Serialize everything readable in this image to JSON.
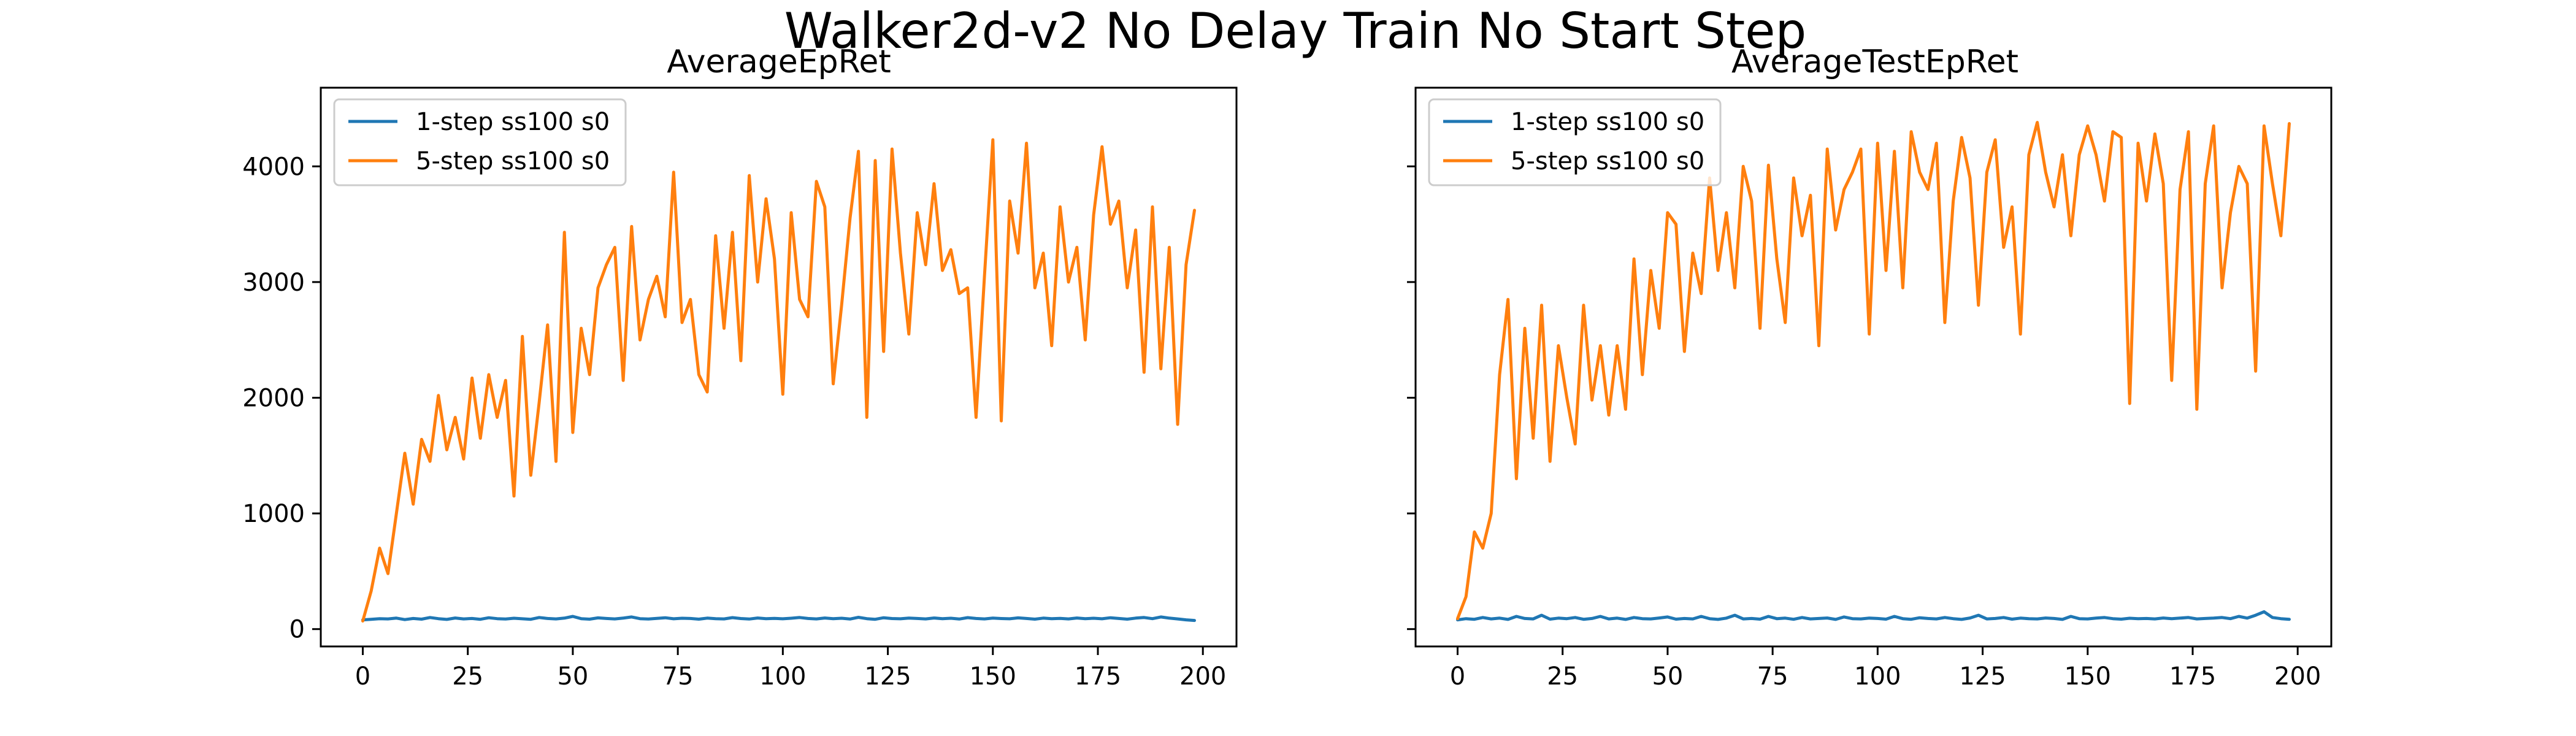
{
  "figure": {
    "title": "Walker2d-v2 No Delay Train No Start Step"
  },
  "colors": {
    "series_0": "#1f77b4",
    "series_1": "#ff7f0e"
  },
  "chart_data": [
    {
      "type": "line",
      "title": "AverageEpRet",
      "xlabel": "",
      "ylabel": "",
      "xlim": [
        -10,
        208
      ],
      "ylim": [
        -150,
        4680
      ],
      "xticks": [
        0,
        25,
        50,
        75,
        100,
        125,
        150,
        175,
        200
      ],
      "yticks": [
        0,
        1000,
        2000,
        3000,
        4000
      ],
      "show_yticklabels": true,
      "grid": false,
      "legend": "top-left",
      "series": [
        {
          "name": "1-step ss100 s0",
          "color": "#1f77b4",
          "x": [
            0,
            2,
            4,
            6,
            8,
            10,
            12,
            14,
            16,
            18,
            20,
            22,
            24,
            26,
            28,
            30,
            32,
            34,
            36,
            38,
            40,
            42,
            44,
            46,
            48,
            50,
            52,
            54,
            56,
            58,
            60,
            62,
            64,
            66,
            68,
            70,
            72,
            74,
            76,
            78,
            80,
            82,
            84,
            86,
            88,
            90,
            92,
            94,
            96,
            98,
            100,
            102,
            104,
            106,
            108,
            110,
            112,
            114,
            116,
            118,
            120,
            122,
            124,
            126,
            128,
            130,
            132,
            134,
            136,
            138,
            140,
            142,
            144,
            146,
            148,
            150,
            152,
            154,
            156,
            158,
            160,
            162,
            164,
            166,
            168,
            170,
            172,
            174,
            176,
            178,
            180,
            182,
            184,
            186,
            188,
            190,
            192,
            194,
            196,
            198
          ],
          "y": [
            80,
            85,
            90,
            88,
            95,
            82,
            92,
            86,
            100,
            90,
            84,
            96,
            88,
            92,
            85,
            98,
            90,
            87,
            94,
            89,
            85,
            100,
            92,
            88,
            95,
            110,
            90,
            86,
            97,
            92,
            88,
            95,
            105,
            90,
            87,
            93,
            98,
            89,
            94,
            92,
            86,
            95,
            90,
            88,
            99,
            91,
            87,
            96,
            90,
            93,
            89,
            94,
            100,
            92,
            88,
            96,
            90,
            94,
            87,
            102,
            90,
            85,
            98,
            91,
            89,
            95,
            92,
            88,
            96,
            90,
            94,
            87,
            99,
            92,
            88,
            95,
            91,
            89,
            97,
            92,
            86,
            95,
            90,
            93,
            88,
            96,
            90,
            94,
            89,
            98,
            92,
            86,
            95,
            100,
            90,
            105,
            95,
            88,
            80,
            75
          ]
        },
        {
          "name": "5-step ss100 s0",
          "color": "#ff7f0e",
          "x": [
            0,
            2,
            4,
            6,
            8,
            10,
            12,
            14,
            16,
            18,
            20,
            22,
            24,
            26,
            28,
            30,
            32,
            34,
            36,
            38,
            40,
            42,
            44,
            46,
            48,
            50,
            52,
            54,
            56,
            58,
            60,
            62,
            64,
            66,
            68,
            70,
            72,
            74,
            76,
            78,
            80,
            82,
            84,
            86,
            88,
            90,
            92,
            94,
            96,
            98,
            100,
            102,
            104,
            106,
            108,
            110,
            112,
            114,
            116,
            118,
            120,
            122,
            124,
            126,
            128,
            130,
            132,
            134,
            136,
            138,
            140,
            142,
            144,
            146,
            148,
            150,
            152,
            154,
            156,
            158,
            160,
            162,
            164,
            166,
            168,
            170,
            172,
            174,
            176,
            178,
            180,
            182,
            184,
            186,
            188,
            190,
            192,
            194,
            196,
            198
          ],
          "y": [
            70,
            330,
            700,
            480,
            1000,
            1520,
            1080,
            1640,
            1450,
            2020,
            1550,
            1830,
            1470,
            2170,
            1650,
            2200,
            1830,
            2150,
            1150,
            2530,
            1330,
            1960,
            2630,
            1450,
            3430,
            1700,
            2600,
            2200,
            2950,
            3150,
            3300,
            2150,
            3480,
            2500,
            2850,
            3050,
            2700,
            3950,
            2650,
            2850,
            2200,
            2050,
            3400,
            2600,
            3430,
            2320,
            3920,
            3000,
            3720,
            3200,
            2030,
            3600,
            2850,
            2700,
            3870,
            3650,
            2120,
            2800,
            3550,
            4130,
            1830,
            4050,
            2400,
            4150,
            3250,
            2550,
            3600,
            3150,
            3850,
            3100,
            3280,
            2900,
            2950,
            1830,
            3050,
            4230,
            1800,
            3700,
            3250,
            4200,
            2950,
            3250,
            2450,
            3650,
            3000,
            3300,
            2500,
            3580,
            4170,
            3500,
            3700,
            2950,
            3450,
            2220,
            3650,
            2250,
            3300,
            1770,
            3150,
            3620
          ]
        }
      ]
    },
    {
      "type": "line",
      "title": "AverageTestEpRet",
      "xlabel": "",
      "ylabel": "",
      "xlim": [
        -10,
        208
      ],
      "ylim": [
        -150,
        4680
      ],
      "xticks": [
        0,
        25,
        50,
        75,
        100,
        125,
        150,
        175,
        200
      ],
      "yticks": [
        0,
        1000,
        2000,
        3000,
        4000
      ],
      "show_yticklabels": false,
      "grid": false,
      "legend": "top-left",
      "series": [
        {
          "name": "1-step ss100 s0",
          "color": "#1f77b4",
          "x": [
            0,
            2,
            4,
            6,
            8,
            10,
            12,
            14,
            16,
            18,
            20,
            22,
            24,
            26,
            28,
            30,
            32,
            34,
            36,
            38,
            40,
            42,
            44,
            46,
            48,
            50,
            52,
            54,
            56,
            58,
            60,
            62,
            64,
            66,
            68,
            70,
            72,
            74,
            76,
            78,
            80,
            82,
            84,
            86,
            88,
            90,
            92,
            94,
            96,
            98,
            100,
            102,
            104,
            106,
            108,
            110,
            112,
            114,
            116,
            118,
            120,
            122,
            124,
            126,
            128,
            130,
            132,
            134,
            136,
            138,
            140,
            142,
            144,
            146,
            148,
            150,
            152,
            154,
            156,
            158,
            160,
            162,
            164,
            166,
            168,
            170,
            172,
            174,
            176,
            178,
            180,
            182,
            184,
            186,
            188,
            190,
            192,
            194,
            196,
            198
          ],
          "y": [
            80,
            90,
            85,
            100,
            88,
            95,
            84,
            110,
            92,
            88,
            120,
            86,
            95,
            90,
            100,
            85,
            92,
            110,
            88,
            95,
            84,
            100,
            90,
            88,
            96,
            105,
            86,
            92,
            88,
            110,
            90,
            84,
            95,
            120,
            88,
            92,
            86,
            110,
            90,
            95,
            85,
            100,
            88,
            92,
            96,
            84,
            105,
            90,
            88,
            95,
            92,
            86,
            110,
            90,
            85,
            98,
            92,
            88,
            100,
            90,
            84,
            96,
            120,
            88,
            92,
            100,
            86,
            95,
            90,
            88,
            96,
            92,
            84,
            110,
            90,
            88,
            95,
            100,
            90,
            86,
            94,
            90,
            92,
            88,
            96,
            90,
            95,
            100,
            88,
            92,
            95,
            100,
            90,
            110,
            95,
            120,
            150,
            100,
            90,
            85
          ]
        },
        {
          "name": "5-step ss100 s0",
          "color": "#ff7f0e",
          "x": [
            0,
            2,
            4,
            6,
            8,
            10,
            12,
            14,
            16,
            18,
            20,
            22,
            24,
            26,
            28,
            30,
            32,
            34,
            36,
            38,
            40,
            42,
            44,
            46,
            48,
            50,
            52,
            54,
            56,
            58,
            60,
            62,
            64,
            66,
            68,
            70,
            72,
            74,
            76,
            78,
            80,
            82,
            84,
            86,
            88,
            90,
            92,
            94,
            96,
            98,
            100,
            102,
            104,
            106,
            108,
            110,
            112,
            114,
            116,
            118,
            120,
            122,
            124,
            126,
            128,
            130,
            132,
            134,
            136,
            138,
            140,
            142,
            144,
            146,
            148,
            150,
            152,
            154,
            156,
            158,
            160,
            162,
            164,
            166,
            168,
            170,
            172,
            174,
            176,
            178,
            180,
            182,
            184,
            186,
            188,
            190,
            192,
            194,
            196,
            198
          ],
          "y": [
            90,
            280,
            840,
            700,
            1000,
            2200,
            2850,
            1300,
            2600,
            1650,
            2800,
            1450,
            2450,
            2000,
            1600,
            2800,
            1980,
            2450,
            1850,
            2450,
            1900,
            3200,
            2200,
            3100,
            2600,
            3600,
            3500,
            2400,
            3250,
            2900,
            3900,
            3100,
            3600,
            2950,
            4000,
            3700,
            2600,
            4010,
            3200,
            2650,
            3900,
            3400,
            3750,
            2450,
            4150,
            3450,
            3800,
            3950,
            4150,
            2550,
            4200,
            3100,
            4130,
            2950,
            4300,
            3950,
            3800,
            4200,
            2650,
            3700,
            4250,
            3900,
            2800,
            3950,
            4230,
            3300,
            3650,
            2550,
            4100,
            4380,
            3950,
            3650,
            4100,
            3400,
            4100,
            4350,
            4100,
            3700,
            4300,
            4250,
            1950,
            4200,
            3700,
            4280,
            3850,
            2150,
            3800,
            4300,
            1900,
            3850,
            4350,
            2950,
            3600,
            4000,
            3850,
            2230,
            4350,
            3850,
            3400,
            4370
          ]
        }
      ]
    }
  ]
}
